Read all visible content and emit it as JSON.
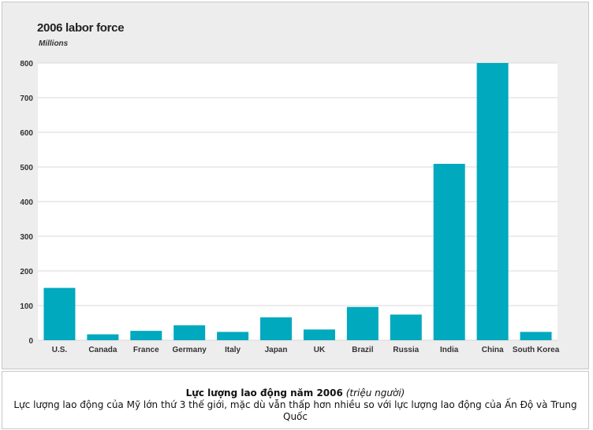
{
  "chart_data": {
    "type": "bar",
    "title": "2006 labor force",
    "subtitle": "Millions",
    "categories": [
      "U.S.",
      "Canada",
      "France",
      "Germany",
      "Italy",
      "Japan",
      "UK",
      "Brazil",
      "Russia",
      "India",
      "China",
      "South Korea"
    ],
    "values": [
      151,
      17,
      27,
      43,
      24,
      66,
      31,
      96,
      74,
      509,
      808,
      24
    ],
    "ylim": [
      0,
      800
    ],
    "yticks": [
      0,
      100,
      200,
      300,
      400,
      500,
      600,
      700,
      800
    ],
    "grid": true,
    "colors": {
      "bar": "#00a9bd",
      "plot_bg": "#ffffff",
      "frame_bg": "#ededed",
      "grid": "#d9d9d9"
    }
  },
  "caption": {
    "title": "Lực lượng lao động năm 2006",
    "title_note": "(triệu người)",
    "body": "Lực lượng lao động của Mỹ lớn thứ 3 thế giới, mặc dù vẫn thấp hơn nhiều so với lực lượng lao động của Ấn Độ và Trung Quốc"
  }
}
